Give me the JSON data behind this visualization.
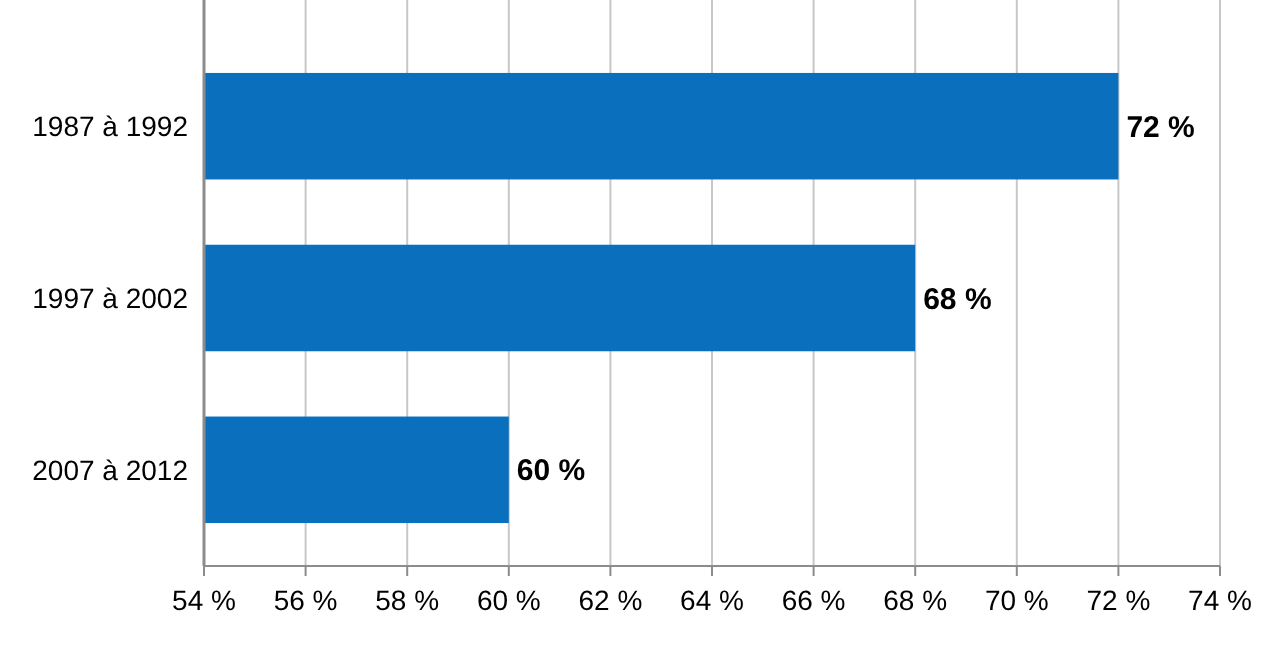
{
  "chart_data": {
    "type": "bar",
    "orientation": "horizontal",
    "categories": [
      "1987 à 1992",
      "1997 à 2002",
      "2007 à 2012"
    ],
    "values": [
      72,
      68,
      60
    ],
    "value_labels": [
      "72 %",
      "68 %",
      "60 %"
    ],
    "color": "#0a70bd",
    "xlim": [
      54,
      74
    ],
    "xticks": [
      {
        "value": 54,
        "label": "54 %"
      },
      {
        "value": 56,
        "label": "56 %"
      },
      {
        "value": 58,
        "label": "58 %"
      },
      {
        "value": 60,
        "label": "60 %"
      },
      {
        "value": 62,
        "label": "62 %"
      },
      {
        "value": 64,
        "label": "64 %"
      },
      {
        "value": 66,
        "label": "66 %"
      },
      {
        "value": 68,
        "label": "68 %"
      },
      {
        "value": 70,
        "label": "70 %"
      },
      {
        "value": 72,
        "label": "72 %"
      },
      {
        "value": 74,
        "label": "74 %"
      }
    ],
    "grid": "x"
  }
}
